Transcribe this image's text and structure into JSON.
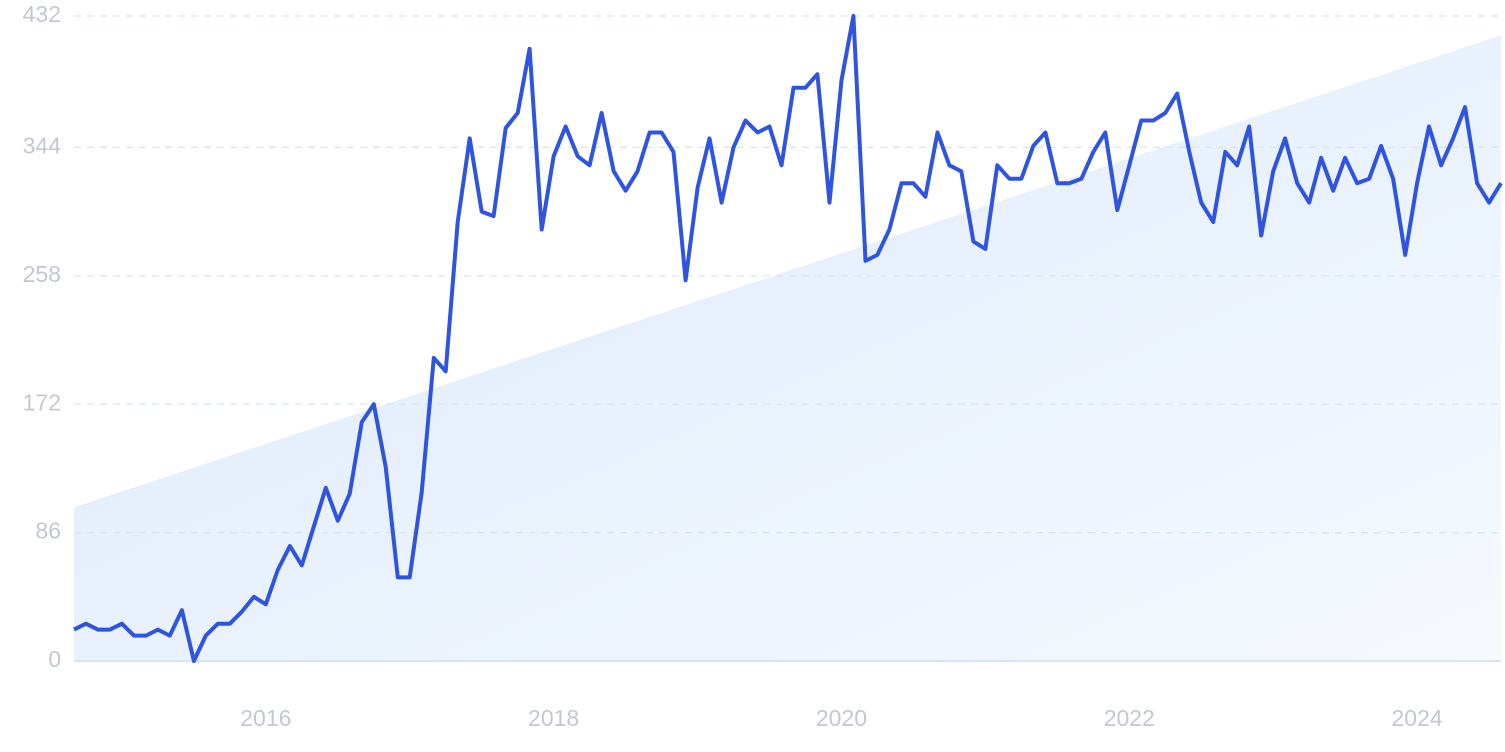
{
  "chart_data": {
    "type": "line",
    "xlim": [
      2014.667,
      2024.583
    ],
    "xticks": [
      2016,
      2018,
      2020,
      2022,
      2024
    ],
    "ylim": [
      0,
      432
    ],
    "yticks": [
      0,
      86,
      172,
      258,
      344,
      432
    ],
    "grid": true,
    "series": [
      {
        "color": "#2f55e0",
        "x": [
          2014.667,
          2014.75,
          2014.833,
          2014.917,
          2015.0,
          2015.083,
          2015.167,
          2015.25,
          2015.333,
          2015.417,
          2015.5,
          2015.583,
          2015.667,
          2015.75,
          2015.833,
          2015.917,
          2016.0,
          2016.083,
          2016.167,
          2016.25,
          2016.333,
          2016.417,
          2016.5,
          2016.583,
          2016.667,
          2016.75,
          2016.833,
          2016.917,
          2017.0,
          2017.083,
          2017.167,
          2017.25,
          2017.333,
          2017.417,
          2017.5,
          2017.583,
          2017.667,
          2017.75,
          2017.833,
          2017.917,
          2018.0,
          2018.083,
          2018.167,
          2018.25,
          2018.333,
          2018.417,
          2018.5,
          2018.583,
          2018.667,
          2018.75,
          2018.833,
          2018.917,
          2019.0,
          2019.083,
          2019.167,
          2019.25,
          2019.333,
          2019.417,
          2019.5,
          2019.583,
          2019.667,
          2019.75,
          2019.833,
          2019.917,
          2020.0,
          2020.083,
          2020.167,
          2020.25,
          2020.333,
          2020.417,
          2020.5,
          2020.583,
          2020.667,
          2020.75,
          2020.833,
          2020.917,
          2021.0,
          2021.083,
          2021.167,
          2021.25,
          2021.333,
          2021.417,
          2021.5,
          2021.583,
          2021.667,
          2021.75,
          2021.833,
          2021.917,
          2022.0,
          2022.083,
          2022.167,
          2022.25,
          2022.333,
          2022.417,
          2022.5,
          2022.583,
          2022.667,
          2022.75,
          2022.833,
          2022.917,
          2023.0,
          2023.083,
          2023.167,
          2023.25,
          2023.333,
          2023.417,
          2023.5,
          2023.583,
          2023.667,
          2023.75,
          2023.833,
          2023.917,
          2024.0,
          2024.083,
          2024.167,
          2024.25,
          2024.333,
          2024.417,
          2024.5,
          2024.583
        ],
        "values": [
          21,
          25,
          21,
          21,
          25,
          17,
          17,
          21,
          17,
          34,
          0,
          17,
          25,
          25,
          33,
          43,
          38,
          61,
          77,
          64,
          90,
          116,
          94,
          112,
          160,
          172,
          130,
          56,
          56,
          113,
          203,
          194,
          294,
          350,
          301,
          298,
          357,
          367,
          410,
          289,
          338,
          358,
          338,
          332,
          367,
          328,
          315,
          328,
          354,
          354,
          341,
          255,
          317,
          350,
          307,
          344,
          362,
          354,
          358,
          332,
          384,
          384,
          393,
          307,
          389,
          432,
          268,
          272,
          289,
          320,
          320,
          311,
          354,
          332,
          328,
          281,
          276,
          332,
          323,
          323,
          345,
          354,
          320,
          320,
          323,
          341,
          354,
          302,
          332,
          362,
          362,
          367,
          380,
          341,
          307,
          294,
          341,
          332,
          358,
          285,
          328,
          350,
          320,
          307,
          337,
          315,
          337,
          320,
          323,
          345,
          323,
          272,
          320,
          358,
          332,
          350,
          371,
          320,
          307,
          320
        ]
      },
      {
        "color": "#dbe9fb",
        "x": [
          2014.667,
          2024.583
        ],
        "values": [
          103,
          419
        ]
      }
    ]
  }
}
